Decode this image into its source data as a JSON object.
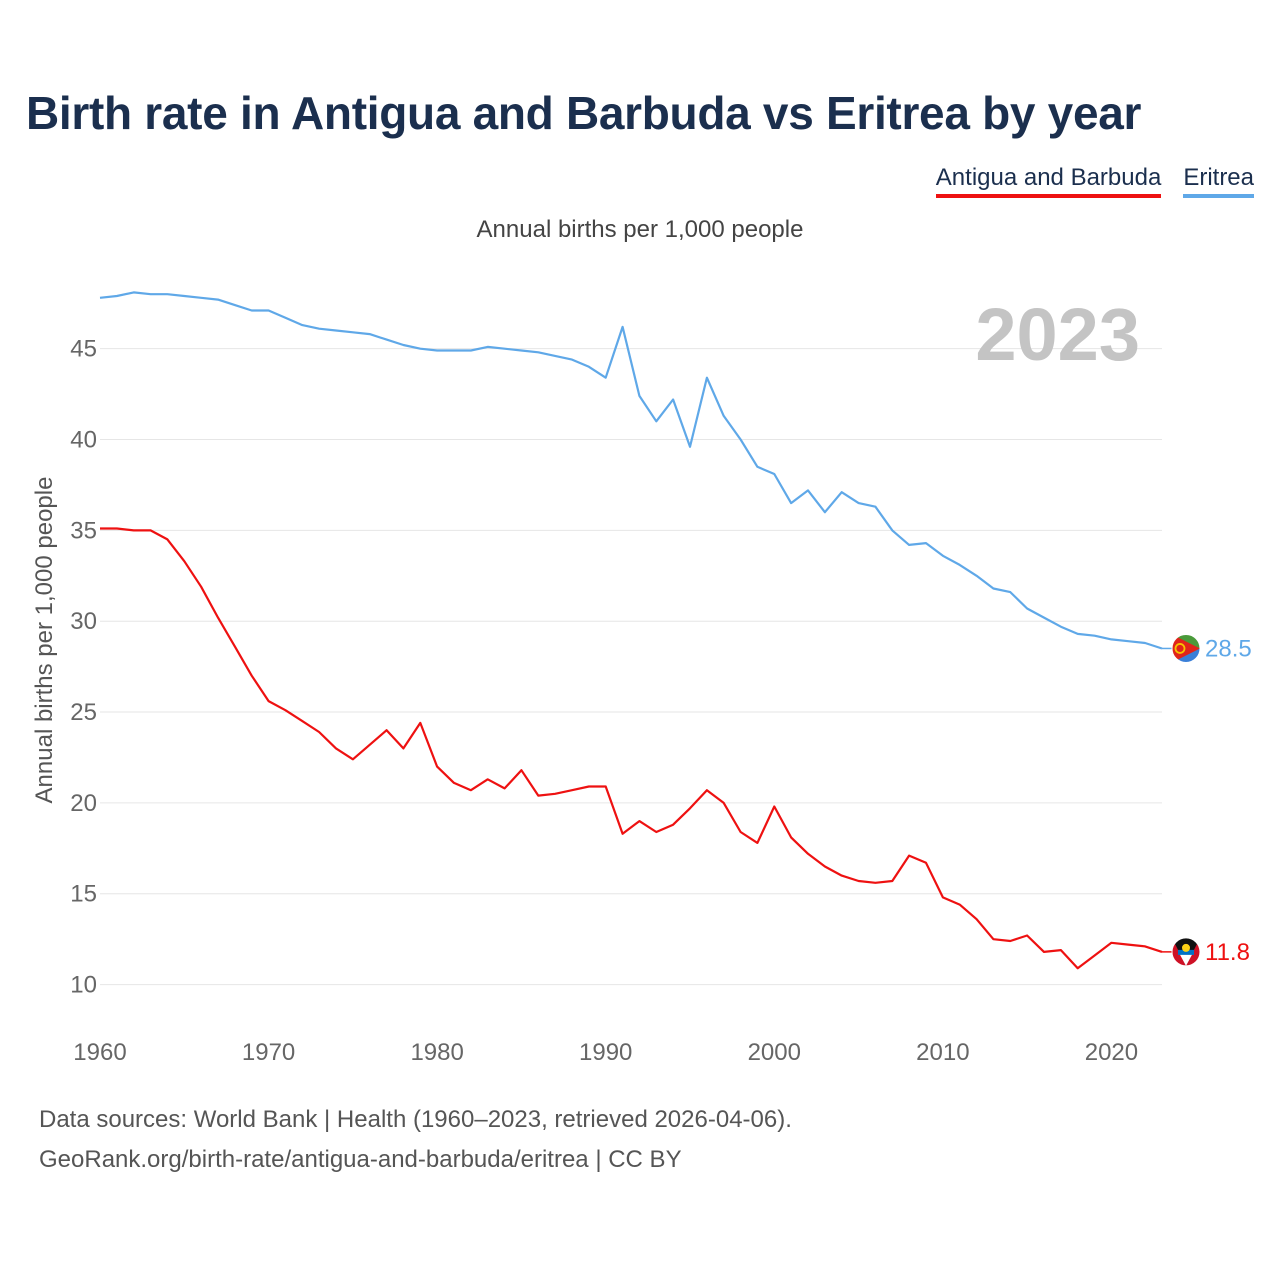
{
  "title": "Birth rate in Antigua and Barbuda vs Eritrea by year",
  "legend": [
    {
      "name": "Antigua and Barbuda",
      "color": "#ee1111"
    },
    {
      "name": "Eritrea",
      "color": "#5fa8e8"
    }
  ],
  "subtitle": "Annual births per 1,000 people",
  "footer": {
    "line1": "Data sources: World Bank | Health (1960–2023, retrieved 2026-04-06).",
    "line2": "GeoRank.org/birth-rate/antigua-and-barbuda/eritrea | CC BY"
  },
  "chart_data": {
    "type": "line",
    "title": "Birth rate in Antigua and Barbuda vs Eritrea by year",
    "ylabel": "Annual births per 1,000 people",
    "xlabel": "",
    "year_label": "2023",
    "xlim": [
      1960,
      2023
    ],
    "ylim": [
      7.5,
      49
    ],
    "x_ticks": [
      1960,
      1970,
      1980,
      1990,
      2000,
      2010,
      2020
    ],
    "y_ticks": [
      10,
      15,
      20,
      25,
      30,
      35,
      40,
      45
    ],
    "grid": true,
    "x": [
      1960,
      1961,
      1962,
      1963,
      1964,
      1965,
      1966,
      1967,
      1968,
      1969,
      1970,
      1971,
      1972,
      1973,
      1974,
      1975,
      1976,
      1977,
      1978,
      1979,
      1980,
      1981,
      1982,
      1983,
      1984,
      1985,
      1986,
      1987,
      1988,
      1989,
      1990,
      1991,
      1992,
      1993,
      1994,
      1995,
      1996,
      1997,
      1998,
      1999,
      2000,
      2001,
      2002,
      2003,
      2004,
      2005,
      2006,
      2007,
      2008,
      2009,
      2010,
      2011,
      2012,
      2013,
      2014,
      2015,
      2016,
      2017,
      2018,
      2019,
      2020,
      2021,
      2022,
      2023
    ],
    "series": [
      {
        "name": "Eritrea",
        "color": "#5fa8e8",
        "end_label": "28.5",
        "values": [
          47.8,
          47.9,
          48.1,
          48.0,
          48.0,
          47.9,
          47.8,
          47.7,
          47.4,
          47.1,
          47.1,
          46.7,
          46.3,
          46.1,
          46.0,
          45.9,
          45.8,
          45.5,
          45.2,
          45.0,
          44.9,
          44.9,
          44.9,
          45.1,
          45.0,
          44.9,
          44.8,
          44.6,
          44.4,
          44.0,
          43.4,
          46.2,
          42.4,
          41.0,
          42.2,
          39.6,
          43.4,
          41.3,
          40.0,
          38.5,
          38.1,
          36.5,
          37.2,
          36.0,
          37.1,
          36.5,
          36.3,
          35.0,
          34.2,
          34.3,
          33.6,
          33.1,
          32.5,
          31.8,
          31.6,
          30.7,
          30.2,
          29.7,
          29.3,
          29.2,
          29.0,
          28.9,
          28.8,
          28.5
        ]
      },
      {
        "name": "Antigua and Barbuda",
        "color": "#ee1111",
        "end_label": "11.8",
        "values": [
          35.1,
          35.1,
          35.0,
          35.0,
          34.5,
          33.3,
          31.9,
          30.2,
          28.6,
          27.0,
          25.6,
          25.1,
          24.5,
          23.9,
          23.0,
          22.4,
          23.2,
          24.0,
          23.0,
          24.4,
          22.0,
          21.1,
          20.7,
          21.3,
          20.8,
          21.8,
          20.4,
          20.5,
          20.7,
          20.9,
          20.9,
          18.3,
          19.0,
          18.4,
          18.8,
          19.7,
          20.7,
          20.0,
          18.4,
          17.8,
          19.8,
          18.1,
          17.2,
          16.5,
          16.0,
          15.7,
          15.6,
          15.7,
          17.1,
          16.7,
          14.8,
          14.4,
          13.6,
          12.5,
          12.4,
          12.7,
          11.8,
          11.9,
          10.9,
          11.6,
          12.3,
          12.2,
          12.1,
          11.8
        ]
      }
    ]
  }
}
